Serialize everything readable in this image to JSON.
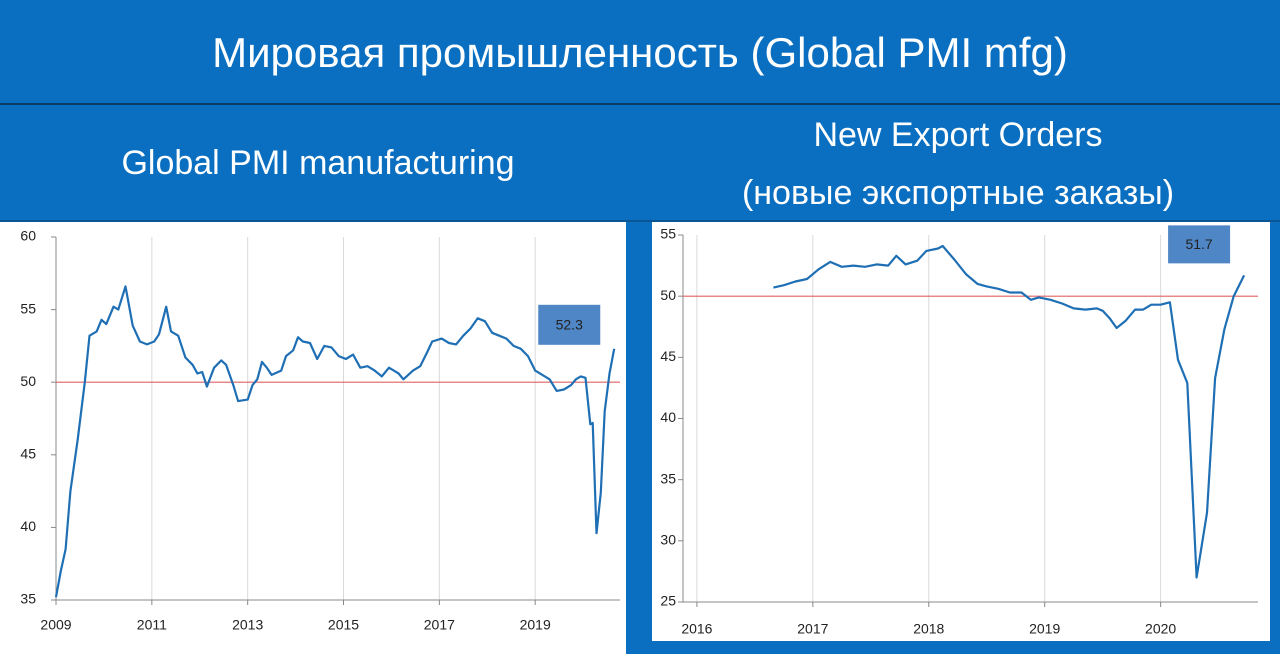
{
  "title": "Мировая промышленность (Global PMI mfg)",
  "chart_data": [
    {
      "type": "line",
      "title": [
        "Global PMI manufacturing"
      ],
      "color": "#1f6fb5",
      "x": [
        2009.0,
        2009.1,
        2009.2,
        2009.3,
        2009.45,
        2009.6,
        2009.7,
        2009.85,
        2009.95,
        2010.05,
        2010.2,
        2010.3,
        2010.45,
        2010.6,
        2010.75,
        2010.9,
        2011.05,
        2011.15,
        2011.3,
        2011.4,
        2011.55,
        2011.7,
        2011.85,
        2011.95,
        2012.05,
        2012.15,
        2012.3,
        2012.45,
        2012.55,
        2012.7,
        2012.8,
        2013.0,
        2013.1,
        2013.2,
        2013.3,
        2013.4,
        2013.5,
        2013.7,
        2013.8,
        2013.95,
        2014.05,
        2014.15,
        2014.3,
        2014.45,
        2014.6,
        2014.75,
        2014.9,
        2015.05,
        2015.2,
        2015.35,
        2015.5,
        2015.65,
        2015.8,
        2015.95,
        2016.05,
        2016.15,
        2016.25,
        2016.35,
        2016.45,
        2016.6,
        2016.75,
        2016.85,
        2017.05,
        2017.2,
        2017.35,
        2017.5,
        2017.65,
        2017.8,
        2017.95,
        2018.1,
        2018.25,
        2018.4,
        2018.55,
        2018.7,
        2018.85,
        2019.0,
        2019.15,
        2019.3,
        2019.45,
        2019.6,
        2019.75,
        2019.85,
        2019.95,
        2020.05,
        2020.15,
        2020.2,
        2020.28,
        2020.37,
        2020.45,
        2020.55,
        2020.65
      ],
      "values": [
        35.2,
        37,
        38.5,
        42.5,
        46,
        50,
        53.2,
        53.5,
        54.3,
        54,
        55.2,
        55,
        56.6,
        53.9,
        52.8,
        52.6,
        52.8,
        53.3,
        55.2,
        53.5,
        53.2,
        51.7,
        51.2,
        50.6,
        50.7,
        49.7,
        51,
        51.5,
        51.2,
        49.8,
        48.7,
        48.8,
        49.8,
        50.2,
        51.4,
        51,
        50.5,
        50.8,
        51.8,
        52.2,
        53.1,
        52.8,
        52.7,
        51.6,
        52.5,
        52.4,
        51.8,
        51.6,
        51.9,
        51,
        51.1,
        50.8,
        50.4,
        51,
        50.8,
        50.6,
        50.2,
        50.5,
        50.8,
        51.1,
        52.1,
        52.8,
        53,
        52.7,
        52.6,
        53.2,
        53.7,
        54.4,
        54.2,
        53.4,
        53.2,
        53,
        52.5,
        52.3,
        51.8,
        50.8,
        50.5,
        50.2,
        49.4,
        49.5,
        49.8,
        50.2,
        50.4,
        50.3,
        47.1,
        47.2,
        39.6,
        42.4,
        48,
        50.6,
        52.3
      ],
      "xlim": [
        2009,
        2020.77
      ],
      "xticks": [
        2009,
        2011,
        2013,
        2015,
        2017,
        2019
      ],
      "ylim": [
        35,
        60
      ],
      "yticks": [
        35,
        40,
        45,
        50,
        55,
        60
      ],
      "grid": "x",
      "reference_line": 50,
      "reference_color": "#e06060",
      "annotation": "52.3",
      "annotation_color": "#4f86c6"
    },
    {
      "type": "line",
      "title": [
        "New Export Orders",
        "(новые экспортные заказы)"
      ],
      "color": "#1f6fb5",
      "x": [
        2016.66,
        2016.75,
        2016.85,
        2016.95,
        2017.05,
        2017.15,
        2017.25,
        2017.35,
        2017.45,
        2017.55,
        2017.65,
        2017.72,
        2017.8,
        2017.9,
        2017.98,
        2018.08,
        2018.12,
        2018.22,
        2018.32,
        2018.42,
        2018.5,
        2018.6,
        2018.7,
        2018.8,
        2018.88,
        2018.95,
        2019.05,
        2019.15,
        2019.25,
        2019.35,
        2019.45,
        2019.5,
        2019.56,
        2019.62,
        2019.7,
        2019.78,
        2019.85,
        2019.92,
        2020.0,
        2020.08,
        2020.15,
        2020.23,
        2020.31,
        2020.4,
        2020.47,
        2020.55,
        2020.63,
        2020.72
      ],
      "values": [
        50.7,
        50.9,
        51.2,
        51.4,
        52.2,
        52.8,
        52.4,
        52.5,
        52.4,
        52.6,
        52.5,
        53.3,
        52.6,
        52.9,
        53.7,
        53.9,
        54.1,
        53,
        51.8,
        51,
        50.8,
        50.6,
        50.3,
        50.3,
        49.7,
        49.9,
        49.7,
        49.4,
        49,
        48.9,
        49,
        48.8,
        48.2,
        47.4,
        48,
        48.9,
        48.9,
        49.3,
        49.3,
        49.5,
        44.8,
        42.9,
        27,
        32.3,
        43.3,
        47.3,
        50,
        51.7
      ],
      "xlim": [
        2015.88,
        2020.84
      ],
      "xticks": [
        2016,
        2017,
        2018,
        2019,
        2020
      ],
      "ylim": [
        25,
        55
      ],
      "yticks": [
        25,
        30,
        35,
        40,
        45,
        50,
        55
      ],
      "grid": "x",
      "reference_line": 50,
      "reference_color": "#e06060",
      "annotation": "51.7",
      "annotation_color": "#4f86c6"
    }
  ]
}
